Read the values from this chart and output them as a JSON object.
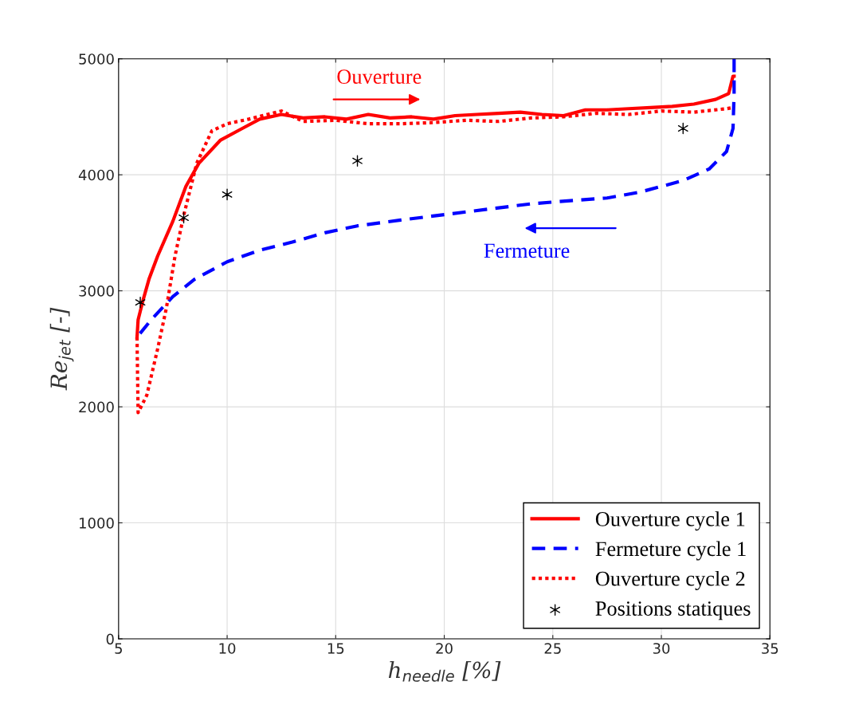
{
  "chart_data": {
    "type": "line",
    "xlabel": "h$_{needle}$ [%]",
    "ylabel": "Re$_{jet}$ [-]",
    "xlim": [
      5,
      35
    ],
    "xticks": [
      5,
      10,
      15,
      20,
      25,
      30,
      35
    ],
    "ylim": [
      0,
      5000
    ],
    "yticks": [
      0,
      1000,
      2000,
      3000,
      4000,
      5000
    ],
    "grid": true,
    "legend": "bottom right",
    "annotations": [
      "Ouverture",
      "Fermeture"
    ],
    "series": [
      {
        "name": "Ouverture cycle 1",
        "color": "#ff0000",
        "line_style": "solid",
        "marker": "none",
        "x": [
          5.85,
          5.9,
          6.1,
          6.4,
          6.8,
          7.5,
          8.1,
          8.7,
          9.7,
          10.7,
          11.5,
          12.5,
          13.5,
          14.5,
          15.5,
          16.5,
          17.5,
          18.5,
          19.5,
          20.5,
          21.5,
          22.5,
          23.5,
          24.5,
          25.5,
          26.5,
          27.5,
          28.5,
          29.5,
          30.5,
          31.5,
          32.5,
          33.1,
          33.3,
          33.35
        ],
        "values": [
          2600,
          2750,
          2900,
          3100,
          3300,
          3600,
          3900,
          4100,
          4300,
          4400,
          4480,
          4520,
          4490,
          4500,
          4480,
          4520,
          4490,
          4500,
          4480,
          4510,
          4520,
          4530,
          4540,
          4520,
          4510,
          4560,
          4560,
          4570,
          4580,
          4590,
          4610,
          4650,
          4700,
          4850,
          4850
        ]
      },
      {
        "name": "Fermeture cycle 1",
        "color": "#0000ff",
        "line_style": "dashed",
        "marker": "none",
        "x": [
          33.35,
          33.35,
          33.3,
          33.0,
          32.2,
          31,
          29,
          27.5,
          26,
          24,
          21,
          18,
          16,
          14.5,
          13,
          11.5,
          10,
          8.5,
          7.5,
          6.5,
          5.85
        ],
        "values": [
          5000,
          4700,
          4400,
          4200,
          4050,
          3950,
          3850,
          3800,
          3780,
          3750,
          3680,
          3610,
          3560,
          3500,
          3420,
          3350,
          3250,
          3100,
          2950,
          2750,
          2600
        ]
      },
      {
        "name": "Ouverture cycle 2",
        "color": "#ff0000",
        "line_style": "dotted",
        "marker": "none",
        "x": [
          5.85,
          5.88,
          5.9,
          6.3,
          6.8,
          7.2,
          7.6,
          8.0,
          8.6,
          9.3,
          10,
          11,
          12.5,
          13.5,
          15,
          16.5,
          18,
          19.5,
          21,
          22.5,
          24,
          25.5,
          27,
          28.5,
          30,
          31.5,
          33,
          33.3
        ],
        "values": [
          2600,
          2200,
          1950,
          2100,
          2500,
          2850,
          3300,
          3650,
          4100,
          4380,
          4440,
          4480,
          4550,
          4460,
          4470,
          4440,
          4440,
          4450,
          4470,
          4460,
          4490,
          4500,
          4530,
          4520,
          4550,
          4540,
          4570,
          4580
        ]
      },
      {
        "name": "Positions statiques",
        "color": "#000000",
        "type": "scatter",
        "marker": "cross",
        "x": [
          6,
          8,
          10,
          16,
          31
        ],
        "values": [
          2900,
          3630,
          3830,
          4120,
          4400
        ]
      }
    ]
  }
}
